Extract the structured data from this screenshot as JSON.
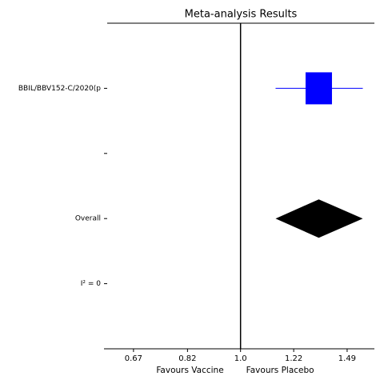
{
  "chart_data": {
    "type": "forest",
    "title": "Meta-analysis Results",
    "xlabel_left": "Favours Vaccine",
    "xlabel_right": "Favours Placebo",
    "categories": [
      "BBIL/BBV152-C/2020(p",
      null,
      "Overall",
      "I² = 0"
    ],
    "values": [
      1.34,
      null,
      1.34,
      null
    ],
    "ci_low": [
      1.14,
      null,
      1.14,
      null
    ],
    "ci_high": [
      1.58,
      null,
      1.58,
      null
    ],
    "markers": [
      "square",
      null,
      "diamond",
      null
    ],
    "colors": [
      "#0000ff",
      null,
      "#000000",
      null
    ],
    "null_value": 1,
    "xscale": "log",
    "xlim": [
      0.6,
      1.65
    ],
    "xticks": [
      0.67,
      0.82,
      {
        "value": 1,
        "label": "1.0"
      },
      1.22,
      1.49
    ]
  }
}
